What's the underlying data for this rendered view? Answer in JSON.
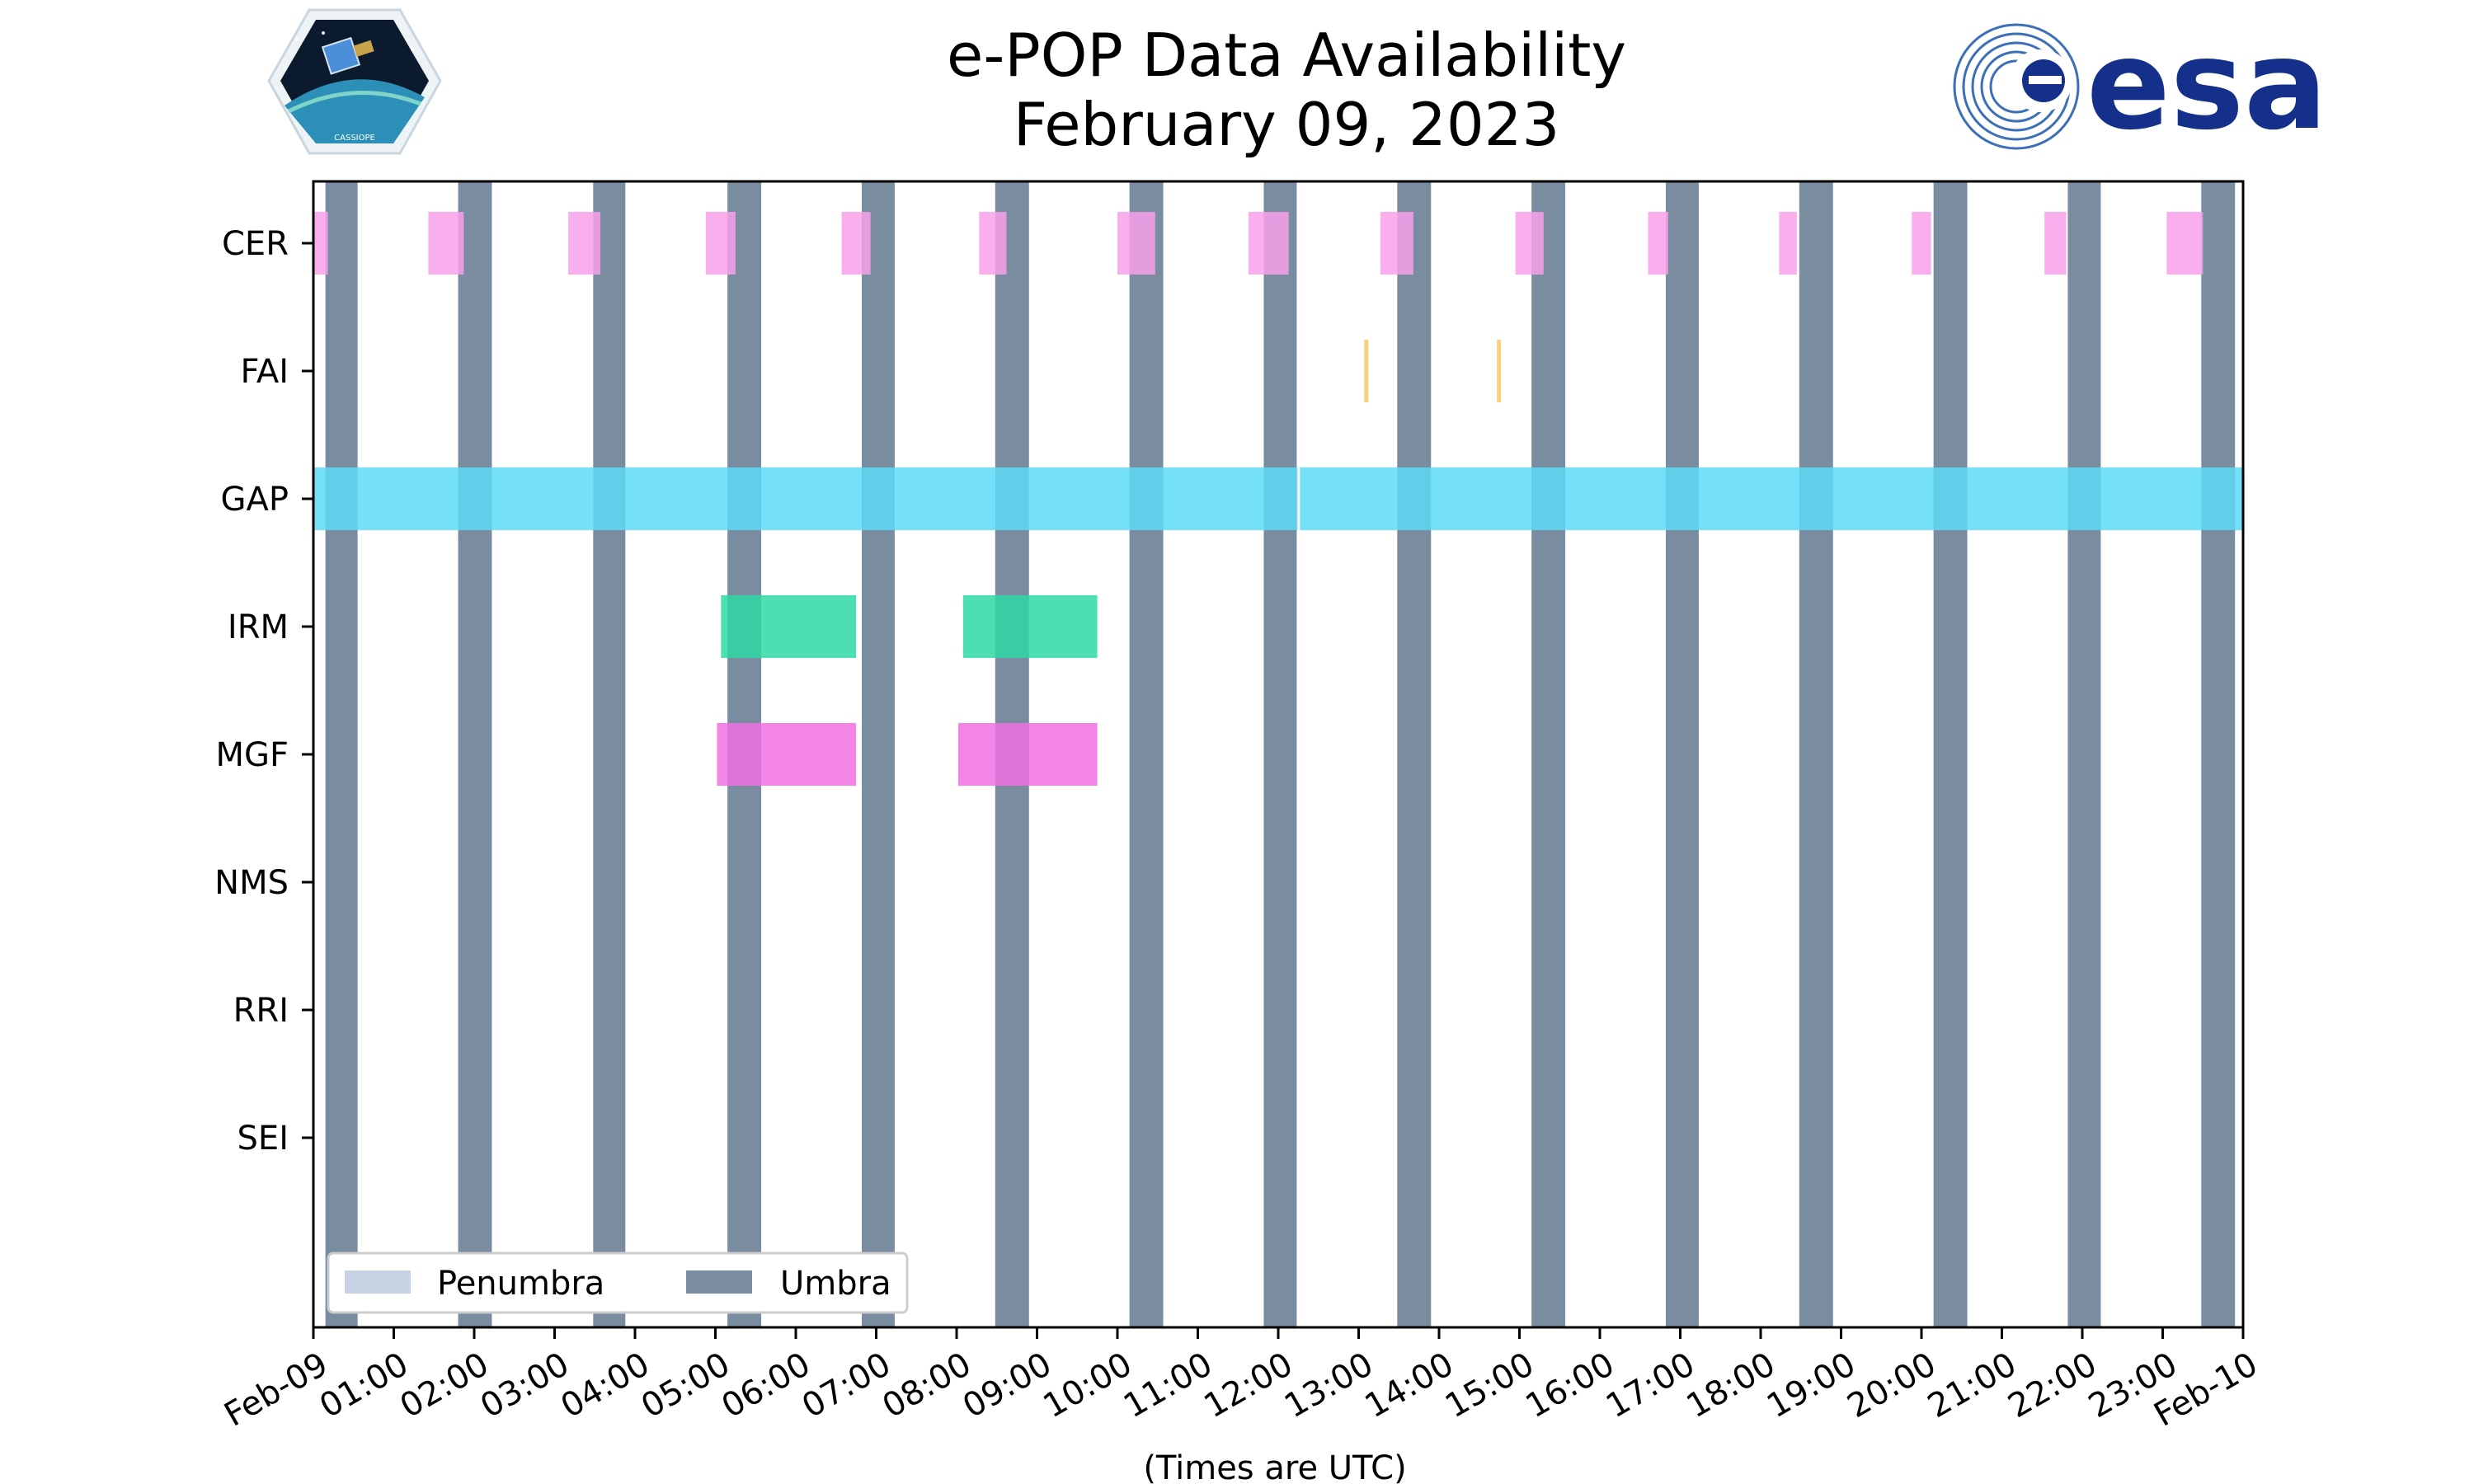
{
  "chart_data": {
    "type": "timeline",
    "title": "e-POP Data Availability",
    "subtitle": "February 09, 2023",
    "xlabel": "(Times are UTC)",
    "x_unit": "hours UTC",
    "xlim": [
      0,
      24
    ],
    "x_tick_labels": [
      "Feb-09",
      "01:00",
      "02:00",
      "03:00",
      "04:00",
      "05:00",
      "06:00",
      "07:00",
      "08:00",
      "09:00",
      "10:00",
      "11:00",
      "12:00",
      "13:00",
      "14:00",
      "15:00",
      "16:00",
      "17:00",
      "18:00",
      "19:00",
      "20:00",
      "21:00",
      "22:00",
      "23:00",
      "Feb-10"
    ],
    "instruments": [
      "CER",
      "FAI",
      "GAP",
      "IRM",
      "MGF",
      "NMS",
      "RRI",
      "SEI"
    ],
    "colors": {
      "CER": "#f8a0ea",
      "FAI": "#f9c76a",
      "GAP": "#5cdcf7",
      "IRM": "#2ed8a5",
      "MGF": "#f070e2",
      "umbra": "#7a8ca0",
      "penumbra": "#c6d2e4"
    },
    "umbra_intervals": [
      [
        0.15,
        0.55
      ],
      [
        1.8,
        2.22
      ],
      [
        3.48,
        3.88
      ],
      [
        5.15,
        5.57
      ],
      [
        6.82,
        7.23
      ],
      [
        8.48,
        8.9
      ],
      [
        10.15,
        10.57
      ],
      [
        11.82,
        12.23
      ],
      [
        13.48,
        13.9
      ],
      [
        15.15,
        15.57
      ],
      [
        16.82,
        17.23
      ],
      [
        18.48,
        18.9
      ],
      [
        20.15,
        20.57
      ],
      [
        21.82,
        22.23
      ],
      [
        23.48,
        23.9
      ]
    ],
    "series": [
      {
        "name": "CER",
        "intervals": [
          [
            0,
            0.18
          ],
          [
            1.43,
            1.87
          ],
          [
            3.17,
            3.57
          ],
          [
            4.88,
            5.25
          ],
          [
            6.57,
            6.93
          ],
          [
            8.28,
            8.62
          ],
          [
            10.0,
            10.47
          ],
          [
            11.63,
            12.13
          ],
          [
            13.27,
            13.68
          ],
          [
            14.95,
            15.3
          ],
          [
            16.6,
            16.85
          ],
          [
            18.23,
            18.45
          ],
          [
            19.88,
            20.12
          ],
          [
            21.53,
            21.8
          ],
          [
            23.05,
            23.5
          ]
        ]
      },
      {
        "name": "FAI",
        "intervals": [
          [
            13.07,
            13.12
          ],
          [
            14.72,
            14.77
          ]
        ]
      },
      {
        "name": "GAP",
        "intervals": [
          [
            0,
            12.24
          ],
          [
            12.27,
            24.0
          ]
        ]
      },
      {
        "name": "IRM",
        "intervals": [
          [
            5.07,
            6.75
          ],
          [
            8.08,
            9.75
          ]
        ]
      },
      {
        "name": "MGF",
        "intervals": [
          [
            5.02,
            6.75
          ],
          [
            8.02,
            9.75
          ]
        ]
      },
      {
        "name": "NMS",
        "intervals": []
      },
      {
        "name": "RRI",
        "intervals": []
      },
      {
        "name": "SEI",
        "intervals": []
      }
    ],
    "legend": {
      "entries": [
        "Penumbra",
        "Umbra"
      ],
      "location": "lower-left"
    }
  },
  "logos": {
    "esa_text": "esa",
    "cassiope_text": "CASSIOPE"
  }
}
